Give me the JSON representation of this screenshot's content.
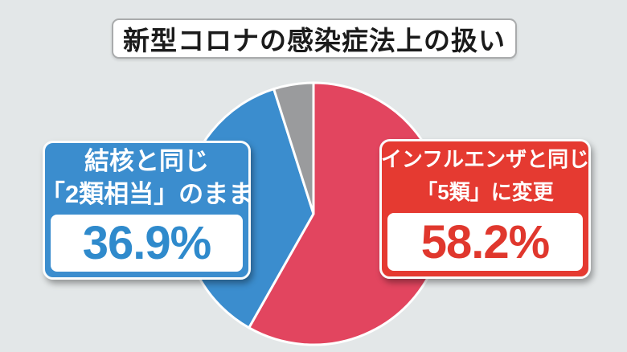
{
  "title": "新型コロナの感染症法上の扱い",
  "colors": {
    "background": "#e3e7e8",
    "title_border": "#a9abac",
    "title_text": "#1b1b1b",
    "pie_stroke": "#ffffff",
    "callout_blue": "#3b8dce",
    "callout_red": "#e53a31",
    "value_blue": "#2f8acc",
    "value_red": "#e0372d"
  },
  "chart_data": {
    "type": "pie",
    "title": "新型コロナの感染症法上の扱い",
    "unit": "%",
    "start_angle_deg": 0,
    "direction": "clockwise",
    "legend_position": "none",
    "slices": [
      {
        "label": "インフルエンザと同じ「5類」に変更",
        "value": 58.2,
        "color": "#e2455f"
      },
      {
        "label": "結核と同じ「2類相当」のまま",
        "value": 36.9,
        "color": "#3b8dce"
      },
      {
        "label": "",
        "value": 4.9,
        "color": "#9a9b9d"
      }
    ]
  },
  "callouts": {
    "left": {
      "line1": "結核と同じ",
      "line2": "「2類相当」のまま",
      "value": "36.9%"
    },
    "right": {
      "line1": "インフルエンザと同じ",
      "line2": "「5類」に変更",
      "value": "58.2%"
    }
  }
}
